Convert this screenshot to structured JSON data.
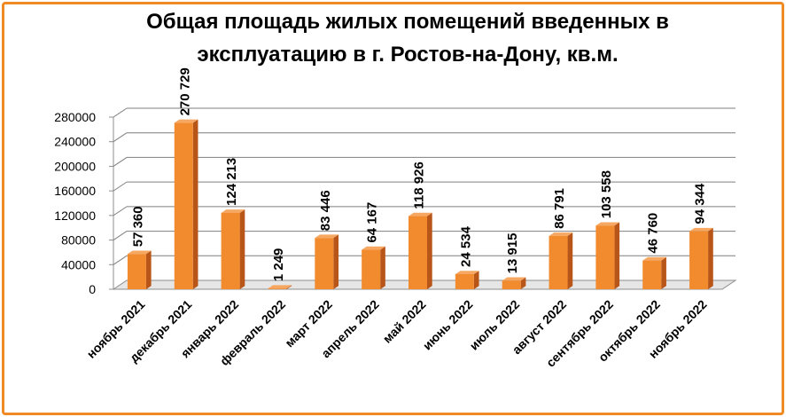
{
  "chart_data": {
    "type": "bar",
    "title_lines": [
      "Общая площадь жилых помещений введенных в",
      "эксплуатацию в г. Ростов-на-Дону, кв.м."
    ],
    "categories": [
      "ноябрь 2021",
      "декабрь 2021",
      "январь 2022",
      "февраль 2022",
      "март 2022",
      "апрель 2022",
      "май 2022",
      "июнь 2022",
      "июль 2022",
      "август 2022",
      "сентябрь 2022",
      "октябрь 2022",
      "ноябрь 2022"
    ],
    "values": [
      57360,
      270729,
      124213,
      1249,
      83446,
      64167,
      118926,
      24534,
      13915,
      86791,
      103558,
      46760,
      94344
    ],
    "data_labels": [
      "57 360",
      "270 729",
      "124 213",
      "1 249",
      "83 446",
      "64 167",
      "118 926",
      "24 534",
      "13 915",
      "86 791",
      "103 558",
      "46 760",
      "94 344"
    ],
    "y_ticks": [
      "0",
      "40000",
      "80000",
      "120000",
      "160000",
      "200000",
      "240000",
      "280000"
    ],
    "ylim": [
      0,
      280000
    ],
    "grid": true,
    "three_d": true,
    "colors": {
      "bar_front": "#f28a2e",
      "bar_side": "#b8561a",
      "bar_top": "#f6a862",
      "frame": "#f08a24",
      "grid": "#7f7f7f"
    }
  }
}
